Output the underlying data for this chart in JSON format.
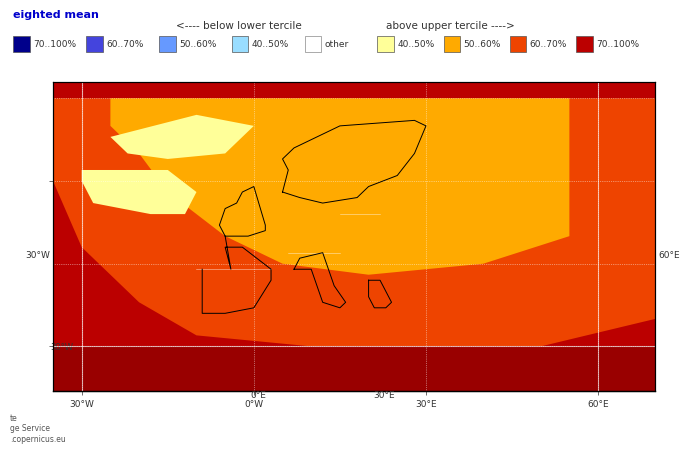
{
  "title_top_left": "eighted mean",
  "title_color": "#0000cc",
  "header_line1": "<---- below lower tercile",
  "header_line2": "above upper tercile ---->",
  "legend_below": [
    {
      "label": "70..100%",
      "color": "#00008B"
    },
    {
      "label": "60..70%",
      "color": "#4444DD"
    },
    {
      "label": "50..60%",
      "color": "#6699FF"
    },
    {
      "label": "40..50%",
      "color": "#99DDFF"
    },
    {
      "label": "other",
      "color": "#FFFFFF"
    }
  ],
  "legend_above": [
    {
      "label": "40..50%",
      "color": "#FFFF99"
    },
    {
      "label": "50..60%",
      "color": "#FFAA00"
    },
    {
      "label": "60..70%",
      "color": "#EE4400"
    },
    {
      "label": "70..100%",
      "color": "#BB0000"
    }
  ],
  "footer_left": "te\nge Service\nopernicus.eu",
  "map_bg": "#BB0000",
  "lon_labels": [
    "30°W",
    "0°W",
    "30°E",
    "60°E"
  ],
  "lat_labels_left": [
    "30°W"
  ],
  "lat_labels_right": [
    "60°E"
  ],
  "bottom_lon_labels": [
    "0°E",
    "30°E"
  ],
  "axis_label_color": "#333333",
  "axis_label_fontsize": 7,
  "border_color": "#000000",
  "grid_color": "#FFFFFF",
  "grid_alpha": 0.7,
  "dot_color": "#FFFFFF",
  "dot_alpha": 0.5
}
